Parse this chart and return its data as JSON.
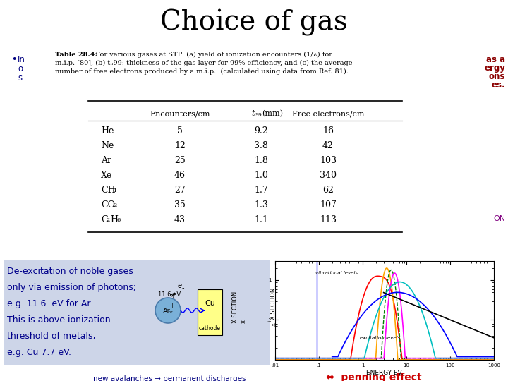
{
  "title": "Choice of gas",
  "title_fontsize": 28,
  "title_color": "#000000",
  "background_color": "#ffffff",
  "bullet_text_color": "#000080",
  "right_text_color": "#8b0000",
  "right_lines": [
    "as a",
    "ergy",
    "ons",
    "es."
  ],
  "right_extra": "ON",
  "table_caption_bold": "Table 28.4:",
  "col_headers": [
    "Encounters/cm",
    "t99(mm)",
    "Free electrons/cm"
  ],
  "gases": [
    "He",
    "Ne",
    "Ar",
    "Xe",
    "CH4",
    "CO2",
    "C2H6"
  ],
  "encounters": [
    5,
    12,
    25,
    46,
    27,
    35,
    43
  ],
  "t99": [
    "9.2",
    "3.8",
    "1.8",
    "1.0",
    "1.7",
    "1.3",
    "1.1"
  ],
  "free_electrons": [
    16,
    42,
    103,
    340,
    62,
    107,
    113
  ],
  "bottom_left_bg": "#cdd5e8",
  "bottom_left_text_color": "#00008b",
  "bottom_left_lines": [
    "De-excitation of noble gases",
    "only via emission of photons;",
    "e.g. 11.6  eV for Ar.",
    "This is above ionization",
    "threshold of metals;",
    "e.g. Cu 7.7 eV."
  ],
  "bottom_center_text": "new avalanches → permanent discharges",
  "bottom_center_color": "#000080",
  "penning_text": "⇔  penning effect",
  "penning_color": "#cc0000"
}
